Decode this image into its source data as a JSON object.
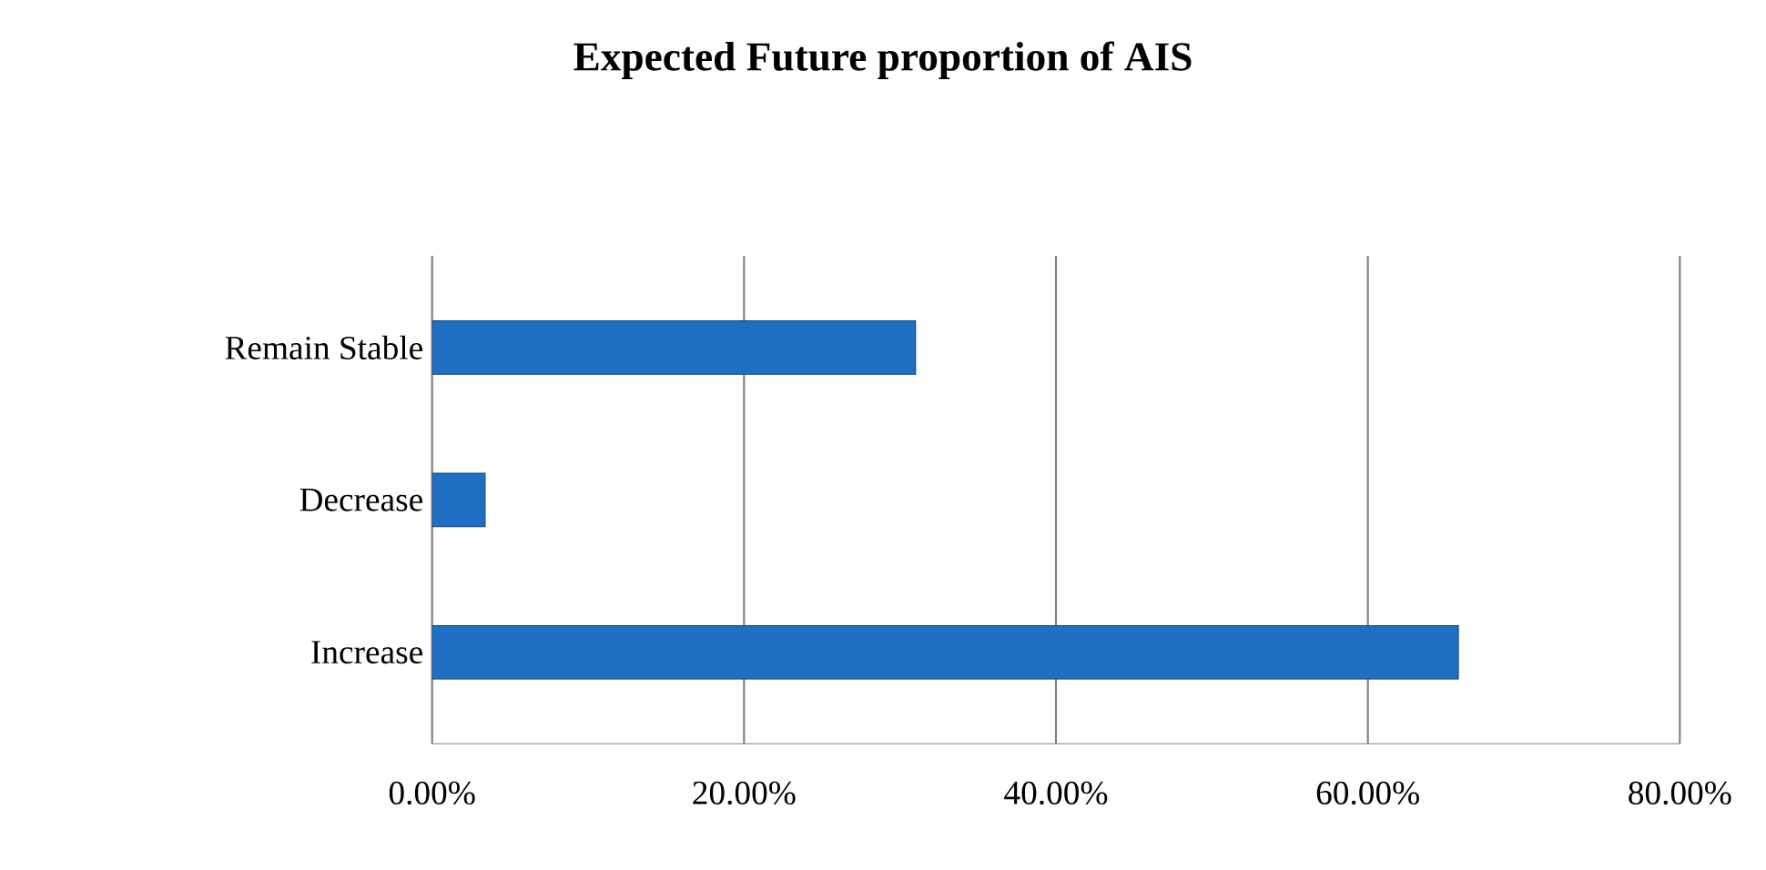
{
  "chart_data": {
    "type": "bar",
    "orientation": "horizontal",
    "title": "Expected Future proportion of AIS",
    "categories": [
      "Remain Stable",
      "Decrease",
      "Increase"
    ],
    "values": [
      31.0,
      3.4,
      65.8
    ],
    "color": "#1f6fc5",
    "xlim": [
      0,
      80
    ],
    "xticks": [
      {
        "value": 0,
        "label": "0.00%"
      },
      {
        "value": 20,
        "label": "20.00%"
      },
      {
        "value": 40,
        "label": "40.00%"
      },
      {
        "value": 60,
        "label": "60.00%"
      },
      {
        "value": 80,
        "label": "80.00%"
      }
    ],
    "grid": "x"
  }
}
